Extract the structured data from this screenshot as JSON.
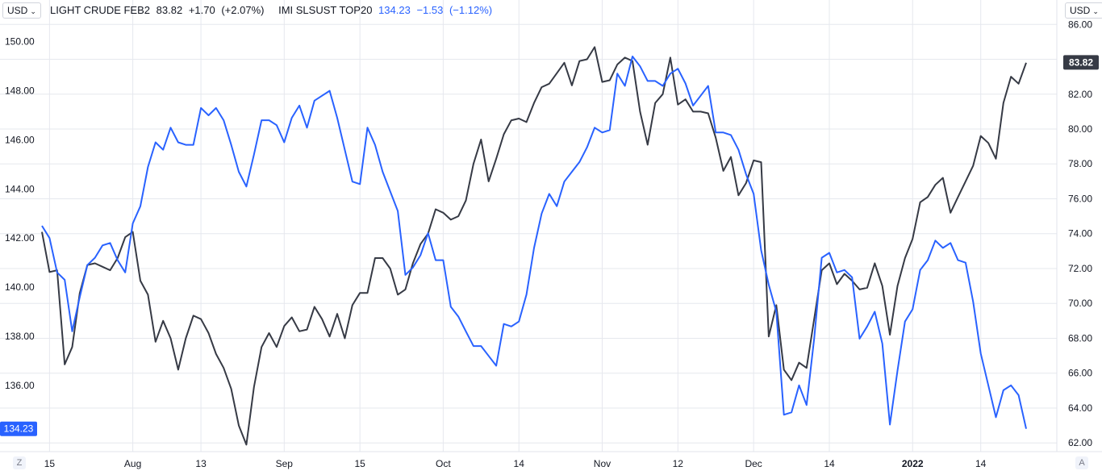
{
  "header": {
    "currency_left": "USD",
    "currency_right": "USD",
    "series1_name": "LIGHT CRUDE FEB2",
    "series1_last": "83.82",
    "series1_change": "+1.70",
    "series1_change_pct": "(+2.07%)",
    "series2_name": "IMI SLSUST TOP20",
    "series2_last": "134.23",
    "series2_change": "−1.53",
    "series2_change_pct": "(−1.12%)"
  },
  "footer": {
    "left_button": "Z",
    "right_button": "A"
  },
  "colors": {
    "series1": "#363a45",
    "series2": "#2962ff",
    "grid": "#e6e8ee",
    "axis_text": "#131722"
  },
  "chart_data": {
    "type": "line",
    "grid": true,
    "x_ticks": [
      "15",
      "Aug",
      "13",
      "Sep",
      "15",
      "Oct",
      "14",
      "Nov",
      "12",
      "Dec",
      "14",
      "2022",
      "14"
    ],
    "x_tick_index": [
      1,
      12,
      21,
      32,
      42,
      53,
      63,
      74,
      84,
      94,
      104,
      115,
      124
    ],
    "left_axis": {
      "ticks": [
        "136.00",
        "138.00",
        "140.00",
        "142.00",
        "144.00",
        "146.00",
        "148.00",
        "150.00"
      ],
      "ylim": [
        133.3,
        151.7
      ]
    },
    "right_axis": {
      "ticks": [
        "62.00",
        "64.00",
        "66.00",
        "68.00",
        "70.00",
        "72.00",
        "74.00",
        "76.00",
        "78.00",
        "80.00",
        "82.00",
        "84.00",
        "86.00"
      ],
      "ylim": [
        61.5,
        87.4
      ]
    },
    "last_labels": {
      "left": "134.23",
      "right": "83.82"
    },
    "series": [
      {
        "name": "LIGHT CRUDE FEB2",
        "axis": "right",
        "values": [
          74.1,
          71.8,
          71.9,
          66.5,
          67.5,
          70.6,
          72.2,
          72.3,
          72.1,
          71.9,
          72.6,
          73.8,
          74.1,
          71.3,
          70.5,
          67.8,
          69.0,
          68.0,
          66.2,
          68.0,
          69.3,
          69.1,
          68.3,
          67.1,
          66.3,
          65.1,
          63.0,
          61.9,
          65.2,
          67.5,
          68.3,
          67.5,
          68.7,
          69.2,
          68.4,
          68.5,
          69.8,
          69.1,
          68.1,
          69.4,
          68.0,
          69.9,
          70.6,
          70.6,
          72.6,
          72.6,
          72.0,
          70.5,
          70.8,
          72.3,
          73.4,
          74.0,
          75.4,
          75.2,
          74.8,
          75.0,
          75.9,
          78.0,
          79.4,
          77.0,
          78.3,
          79.7,
          80.5,
          80.6,
          80.4,
          81.5,
          82.4,
          82.6,
          83.2,
          83.8,
          82.5,
          83.9,
          84.0,
          84.7,
          82.7,
          82.8,
          83.7,
          84.1,
          83.9,
          81.0,
          79.1,
          81.5,
          82.0,
          84.1,
          81.4,
          81.7,
          81.0,
          81.0,
          80.9,
          79.5,
          77.6,
          78.4,
          76.2,
          76.9,
          78.2,
          78.1,
          68.1,
          69.9,
          66.2,
          65.6,
          66.6,
          66.3,
          69.1,
          71.9,
          72.3,
          71.1,
          71.7,
          71.3,
          70.8,
          70.9,
          72.3,
          71.0,
          68.2,
          71.0,
          72.6,
          73.7,
          75.8,
          76.1,
          76.8,
          77.2,
          75.2,
          76.1,
          77.0,
          77.9,
          79.6,
          79.2,
          78.3,
          81.5,
          83.0,
          82.6,
          83.8
        ]
      },
      {
        "name": "IMI SLSUST TOP20",
        "axis": "left",
        "values": [
          142.5,
          142.0,
          140.6,
          140.3,
          138.2,
          139.6,
          140.9,
          141.2,
          141.7,
          141.8,
          141.1,
          140.6,
          142.6,
          143.3,
          144.9,
          145.9,
          145.6,
          146.5,
          145.9,
          145.8,
          145.8,
          147.3,
          147.0,
          147.3,
          146.8,
          145.8,
          144.7,
          144.1,
          145.4,
          146.8,
          146.8,
          146.6,
          145.9,
          146.9,
          147.4,
          146.5,
          147.6,
          147.8,
          148.0,
          146.9,
          145.6,
          144.3,
          144.2,
          146.5,
          145.8,
          144.7,
          143.9,
          143.1,
          140.5,
          140.8,
          141.3,
          142.2,
          141.1,
          141.1,
          139.2,
          138.8,
          138.2,
          137.6,
          137.6,
          137.2,
          136.8,
          138.5,
          138.4,
          138.6,
          139.7,
          141.6,
          143.0,
          143.8,
          143.3,
          144.3,
          144.7,
          145.1,
          145.7,
          146.5,
          146.3,
          146.4,
          148.7,
          148.2,
          149.4,
          149.0,
          148.4,
          148.4,
          148.2,
          148.7,
          148.9,
          148.3,
          147.4,
          147.8,
          148.2,
          146.3,
          146.3,
          146.2,
          145.6,
          144.6,
          143.8,
          141.5,
          140.1,
          139.0,
          134.8,
          134.9,
          136.0,
          135.2,
          137.9,
          141.2,
          141.4,
          140.6,
          140.7,
          140.4,
          137.9,
          138.4,
          139.0,
          137.7,
          134.4,
          136.6,
          138.6,
          139.1,
          140.7,
          141.1,
          141.9,
          141.6,
          141.8,
          141.1,
          141.0,
          139.4,
          137.3,
          136.0,
          134.7,
          135.8,
          136.0,
          135.6,
          134.23
        ]
      }
    ]
  }
}
